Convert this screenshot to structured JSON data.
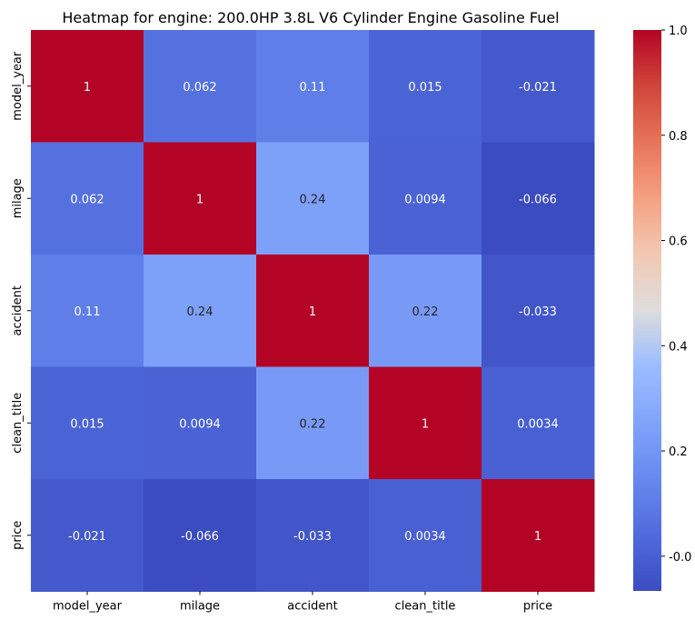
{
  "chart_data": {
    "type": "heatmap",
    "title": "Heatmap for engine: 200.0HP 3.8L V6 Cylinder Engine Gasoline Fuel",
    "xlabel": "",
    "ylabel": "",
    "x_categories": [
      "model_year",
      "milage",
      "accident",
      "clean_title",
      "price"
    ],
    "y_categories": [
      "model_year",
      "milage",
      "accident",
      "clean_title",
      "price"
    ],
    "values": [
      [
        1,
        0.062,
        0.11,
        0.015,
        -0.021
      ],
      [
        0.062,
        1,
        0.24,
        0.0094,
        -0.066
      ],
      [
        0.11,
        0.24,
        1,
        0.22,
        -0.033
      ],
      [
        0.015,
        0.0094,
        0.22,
        1,
        0.0034
      ],
      [
        -0.021,
        -0.066,
        -0.033,
        0.0034,
        1
      ]
    ],
    "labels": [
      [
        "1",
        "0.062",
        "0.11",
        "0.015",
        "-0.021"
      ],
      [
        "0.062",
        "1",
        "0.24",
        "0.0094",
        "-0.066"
      ],
      [
        "0.11",
        "0.24",
        "1",
        "0.22",
        "-0.033"
      ],
      [
        "0.015",
        "0.0094",
        "0.22",
        "1",
        "0.0034"
      ],
      [
        "-0.021",
        "-0.066",
        "-0.033",
        "0.0034",
        "1"
      ]
    ],
    "colormap": "coolwarm",
    "vmin": -0.066,
    "vmax": 1,
    "colorbar_ticks": [
      "1.0",
      "0.8",
      "0.6",
      "0.4",
      "0.2",
      "-0.0"
    ],
    "colorbar_tick_values": [
      1.0,
      0.8,
      0.6,
      0.4,
      0.2,
      0.0
    ],
    "grid": false,
    "legend": "colorbar-right"
  }
}
